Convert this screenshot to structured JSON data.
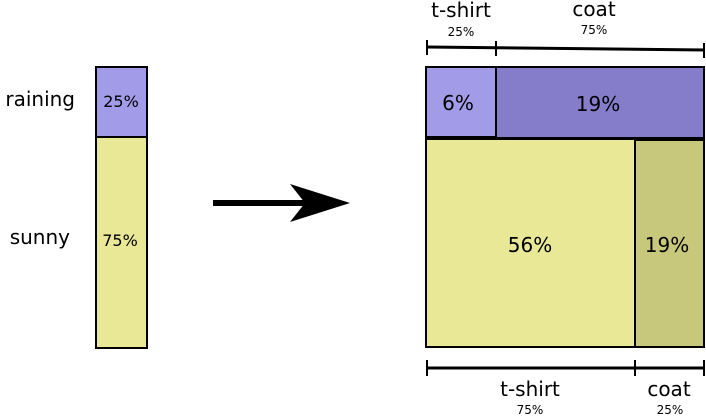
{
  "left_bar": {
    "labels": {
      "raining": "raining",
      "sunny": "sunny"
    },
    "segments": [
      {
        "name": "raining",
        "percent_label": "25%",
        "fraction": 0.25,
        "color": "#a29ce8"
      },
      {
        "name": "sunny",
        "percent_label": "75%",
        "fraction": 0.75,
        "color": "#e8e896"
      }
    ]
  },
  "arrow": {
    "color": "#000000"
  },
  "mosaic": {
    "top_axis": [
      {
        "label": "t-shirt",
        "percent": "25%"
      },
      {
        "label": "coat",
        "percent": "75%"
      }
    ],
    "bottom_axis": [
      {
        "label": "t-shirt",
        "percent": "75%"
      },
      {
        "label": "coat",
        "percent": "25%"
      }
    ],
    "rows": [
      {
        "name": "raining",
        "fraction": 0.25,
        "cells": [
          {
            "label": "6%",
            "fraction": 0.25,
            "color": "#a29ce8"
          },
          {
            "label": "19%",
            "fraction": 0.75,
            "color": "#857cca"
          }
        ]
      },
      {
        "name": "sunny",
        "fraction": 0.75,
        "cells": [
          {
            "label": "56%",
            "fraction": 0.75,
            "color": "#e8e896"
          },
          {
            "label": "19%",
            "fraction": 0.25,
            "color": "#c8c87c"
          }
        ]
      }
    ]
  }
}
